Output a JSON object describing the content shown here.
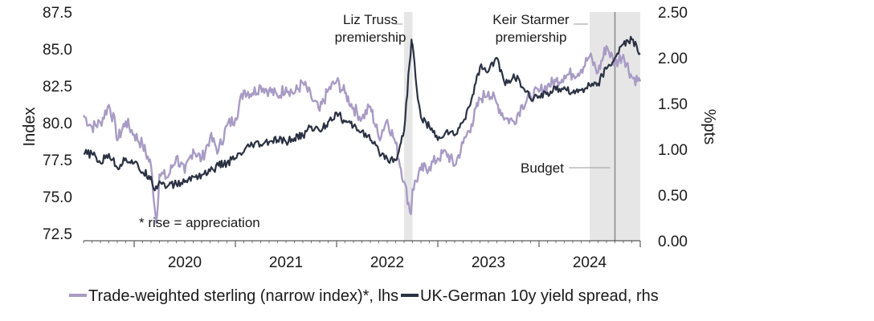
{
  "chart_data": {
    "type": "line",
    "title": "",
    "ylabel_left": "Index",
    "ylabel_right": "%pts",
    "y_left": {
      "ticks": [
        "72.5",
        "75.0",
        "77.5",
        "80.0",
        "82.5",
        "85.0",
        "87.5"
      ],
      "lim": [
        72,
        87.5
      ]
    },
    "y_right": {
      "ticks": [
        "0.00",
        "0.50",
        "1.00",
        "1.50",
        "2.00",
        "2.50"
      ],
      "lim": [
        0,
        2.5
      ]
    },
    "x_year_labels": [
      "2020",
      "2021",
      "2022",
      "2023",
      "2024"
    ],
    "x_range": [
      "2019-07",
      "2025-01"
    ],
    "grid": false,
    "shaded_periods": [
      {
        "label": "Liz Truss\npremiership",
        "start": "2022-09",
        "end": "2022-10"
      },
      {
        "label": "Keir Starmer\npremiership",
        "start": "2024-07",
        "end": "2025-01"
      }
    ],
    "event_line": {
      "label": "Budget",
      "date": "2024-10"
    },
    "annotation": "* rise = appreciation",
    "series": [
      {
        "name": "Trade-weighted sterling (narrow index)*, lhs",
        "axis": "left",
        "color": "#a89bc4",
        "points": [
          [
            "2019-07",
            80.5
          ],
          [
            "2019-08",
            79.7
          ],
          [
            "2019-09",
            80.0
          ],
          [
            "2019-10",
            81.2
          ],
          [
            "2019-10-25",
            79.8
          ],
          [
            "2019-11",
            78.8
          ],
          [
            "2019-12",
            80.1
          ],
          [
            "2020-01",
            79.2
          ],
          [
            "2020-02",
            78.5
          ],
          [
            "2020-03",
            77.1
          ],
          [
            "2020-03-20",
            73.2
          ],
          [
            "2020-04",
            76.5
          ],
          [
            "2020-05",
            76.3
          ],
          [
            "2020-06",
            77.7
          ],
          [
            "2020-07",
            76.6
          ],
          [
            "2020-08",
            78.2
          ],
          [
            "2020-09",
            77.5
          ],
          [
            "2020-10",
            79.0
          ],
          [
            "2020-11",
            78.1
          ],
          [
            "2020-12",
            79.8
          ],
          [
            "2021-01",
            80.3
          ],
          [
            "2021-02",
            82.2
          ],
          [
            "2021-03",
            82.0
          ],
          [
            "2021-04",
            82.5
          ],
          [
            "2021-05",
            82.2
          ],
          [
            "2021-06",
            81.8
          ],
          [
            "2021-07",
            82.4
          ],
          [
            "2021-08",
            82.0
          ],
          [
            "2021-09",
            82.7
          ],
          [
            "2021-10",
            81.7
          ],
          [
            "2021-11",
            80.8
          ],
          [
            "2021-12",
            82.2
          ],
          [
            "2022-01",
            82.8
          ],
          [
            "2022-02",
            82.0
          ],
          [
            "2022-03",
            81.0
          ],
          [
            "2022-04",
            80.3
          ],
          [
            "2022-05",
            81.1
          ],
          [
            "2022-06",
            79.0
          ],
          [
            "2022-07",
            80.2
          ],
          [
            "2022-08",
            78.6
          ],
          [
            "2022-09",
            76.0
          ],
          [
            "2022-09-26",
            73.8
          ],
          [
            "2022-10",
            75.5
          ],
          [
            "2022-11",
            76.8
          ],
          [
            "2022-12",
            77.0
          ],
          [
            "2023-01",
            77.6
          ],
          [
            "2023-02",
            78.0
          ],
          [
            "2023-03",
            77.1
          ],
          [
            "2023-04",
            78.6
          ],
          [
            "2023-05",
            79.9
          ],
          [
            "2023-06",
            81.6
          ],
          [
            "2023-07",
            82.1
          ],
          [
            "2023-08",
            81.3
          ],
          [
            "2023-09",
            80.3
          ],
          [
            "2023-10",
            80.1
          ],
          [
            "2023-11",
            81.2
          ],
          [
            "2023-12",
            81.8
          ],
          [
            "2024-01",
            82.1
          ],
          [
            "2024-02",
            82.5
          ],
          [
            "2024-03",
            82.8
          ],
          [
            "2024-04",
            83.2
          ],
          [
            "2024-05",
            83.3
          ],
          [
            "2024-06",
            83.6
          ],
          [
            "2024-07",
            84.5
          ],
          [
            "2024-08",
            83.4
          ],
          [
            "2024-09",
            85.2
          ],
          [
            "2024-10",
            84.0
          ],
          [
            "2024-11",
            84.6
          ],
          [
            "2024-12",
            83.1
          ],
          [
            "2025-01",
            82.8
          ]
        ]
      },
      {
        "name": "UK-German 10y yield spread, rhs",
        "axis": "right",
        "color": "#2a3142",
        "points": [
          [
            "2019-07",
            0.95
          ],
          [
            "2019-08",
            0.95
          ],
          [
            "2019-09",
            0.85
          ],
          [
            "2019-10",
            0.95
          ],
          [
            "2019-11",
            0.8
          ],
          [
            "2019-12",
            0.9
          ],
          [
            "2020-01",
            0.85
          ],
          [
            "2020-02",
            0.75
          ],
          [
            "2020-03",
            0.7
          ],
          [
            "2020-03-15",
            0.55
          ],
          [
            "2020-04",
            0.65
          ],
          [
            "2020-05",
            0.6
          ],
          [
            "2020-06",
            0.62
          ],
          [
            "2020-07",
            0.64
          ],
          [
            "2020-08",
            0.7
          ],
          [
            "2020-09",
            0.72
          ],
          [
            "2020-10",
            0.76
          ],
          [
            "2020-11",
            0.82
          ],
          [
            "2020-12",
            0.85
          ],
          [
            "2021-01",
            0.9
          ],
          [
            "2021-02",
            0.97
          ],
          [
            "2021-03",
            1.05
          ],
          [
            "2021-04",
            1.05
          ],
          [
            "2021-05",
            1.08
          ],
          [
            "2021-06",
            1.1
          ],
          [
            "2021-07",
            1.08
          ],
          [
            "2021-08",
            1.12
          ],
          [
            "2021-09",
            1.15
          ],
          [
            "2021-10",
            1.25
          ],
          [
            "2021-11",
            1.2
          ],
          [
            "2021-12",
            1.3
          ],
          [
            "2022-01",
            1.4
          ],
          [
            "2022-02",
            1.3
          ],
          [
            "2022-03",
            1.25
          ],
          [
            "2022-04",
            1.2
          ],
          [
            "2022-05",
            1.1
          ],
          [
            "2022-06",
            0.98
          ],
          [
            "2022-07",
            0.9
          ],
          [
            "2022-08",
            0.88
          ],
          [
            "2022-09",
            1.2
          ],
          [
            "2022-09-28",
            2.2
          ],
          [
            "2022-10",
            2.15
          ],
          [
            "2022-10-20",
            1.55
          ],
          [
            "2022-11",
            1.35
          ],
          [
            "2022-12",
            1.25
          ],
          [
            "2023-01",
            1.1
          ],
          [
            "2023-02",
            1.2
          ],
          [
            "2023-03",
            1.15
          ],
          [
            "2023-04",
            1.3
          ],
          [
            "2023-05",
            1.55
          ],
          [
            "2023-06",
            1.9
          ],
          [
            "2023-07",
            1.85
          ],
          [
            "2023-08",
            2.0
          ],
          [
            "2023-09",
            1.7
          ],
          [
            "2023-10",
            1.82
          ],
          [
            "2023-11",
            1.68
          ],
          [
            "2023-12",
            1.55
          ],
          [
            "2024-01",
            1.58
          ],
          [
            "2024-02",
            1.62
          ],
          [
            "2024-03",
            1.65
          ],
          [
            "2024-04",
            1.68
          ],
          [
            "2024-05",
            1.62
          ],
          [
            "2024-06",
            1.65
          ],
          [
            "2024-07",
            1.7
          ],
          [
            "2024-08",
            1.72
          ],
          [
            "2024-09",
            1.88
          ],
          [
            "2024-10",
            2.0
          ],
          [
            "2024-11",
            2.15
          ],
          [
            "2024-12",
            2.2
          ],
          [
            "2025-01",
            2.05
          ]
        ]
      }
    ]
  }
}
